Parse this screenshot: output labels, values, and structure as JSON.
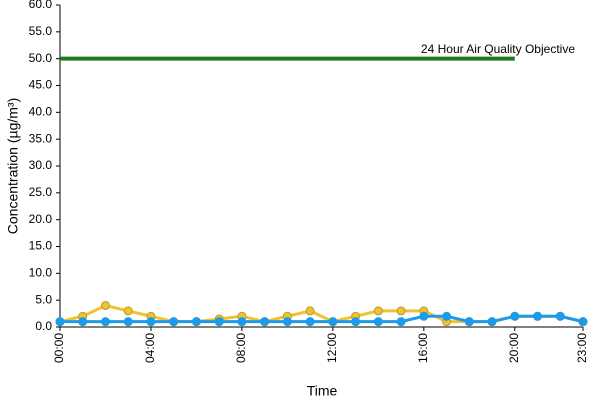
{
  "chart_data": {
    "type": "line",
    "x_label": "Time",
    "y_label": "Concentration (µg/m³)",
    "categories": [
      "00:00",
      null,
      null,
      null,
      "04:00",
      null,
      null,
      null,
      "08:00",
      null,
      null,
      null,
      "12:00",
      null,
      null,
      null,
      "16:00",
      null,
      null,
      null,
      "20:00",
      null,
      null,
      "23:00"
    ],
    "series": [
      {
        "color": "#f0c232",
        "values": [
          1,
          2,
          4,
          3,
          2,
          1,
          1,
          1.5,
          2,
          1,
          2,
          3,
          1,
          2,
          3,
          3,
          3,
          1,
          1,
          1,
          2,
          2,
          2,
          1
        ]
      },
      {
        "color": "#1e9be8",
        "values": [
          1,
          1,
          1,
          1,
          1,
          1,
          1,
          1,
          1,
          1,
          1,
          1,
          1,
          1,
          1,
          1,
          2,
          2,
          1,
          1,
          2,
          2,
          2,
          1
        ]
      }
    ],
    "objective": {
      "label": "24 Hour Air Quality Objective",
      "value": 50,
      "color": "#1f7a1f"
    },
    "ylim": [
      0,
      60
    ],
    "yticks": [
      {
        "value": 0,
        "label": "0.0"
      },
      {
        "value": 5,
        "label": "5.0"
      },
      {
        "value": 10,
        "label": "10.0"
      },
      {
        "value": 15,
        "label": "15.0"
      },
      {
        "value": 20,
        "label": "20.0"
      },
      {
        "value": 25,
        "label": "25.0"
      },
      {
        "value": 30,
        "label": "30.0"
      },
      {
        "value": 35,
        "label": "35.0"
      },
      {
        "value": 40,
        "label": "40.0"
      },
      {
        "value": 45,
        "label": "45.0"
      },
      {
        "value": 50,
        "label": "50.0"
      },
      {
        "value": 55,
        "label": "55.0"
      },
      {
        "value": 60,
        "label": "60.0"
      }
    ],
    "grid": false
  }
}
